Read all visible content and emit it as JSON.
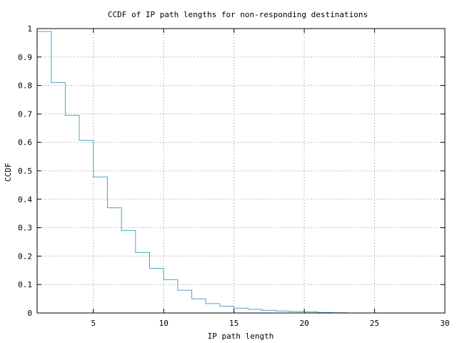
{
  "chart_data": {
    "type": "line",
    "step": true,
    "title": "CCDF of IP path lengths for non-responding destinations",
    "xlabel": "IP path length",
    "ylabel": "CCDF",
    "xlim": [
      1,
      30
    ],
    "ylim": [
      0,
      1
    ],
    "xticks": [
      5,
      10,
      15,
      20,
      25,
      30
    ],
    "yticks": [
      0,
      0.1,
      0.2,
      0.3,
      0.4,
      0.5,
      0.6,
      0.7,
      0.8,
      0.9,
      1
    ],
    "ytick_labels": [
      "0",
      "0.1",
      "0.2",
      "0.3",
      "0.4",
      "0.5",
      "0.6",
      "0.7",
      "0.8",
      "0.9",
      "1"
    ],
    "grid": true,
    "color": "#4aa5c8",
    "x": [
      1,
      2,
      3,
      4,
      5,
      6,
      7,
      8,
      9,
      10,
      11,
      12,
      13,
      14,
      15,
      16,
      17,
      18,
      19,
      20,
      21,
      22,
      23
    ],
    "y": [
      0.99,
      0.81,
      0.695,
      0.607,
      0.478,
      0.37,
      0.29,
      0.213,
      0.157,
      0.117,
      0.08,
      0.05,
      0.033,
      0.024,
      0.017,
      0.013,
      0.009,
      0.007,
      0.005,
      0.004,
      0.002,
      0.001,
      0
    ]
  }
}
